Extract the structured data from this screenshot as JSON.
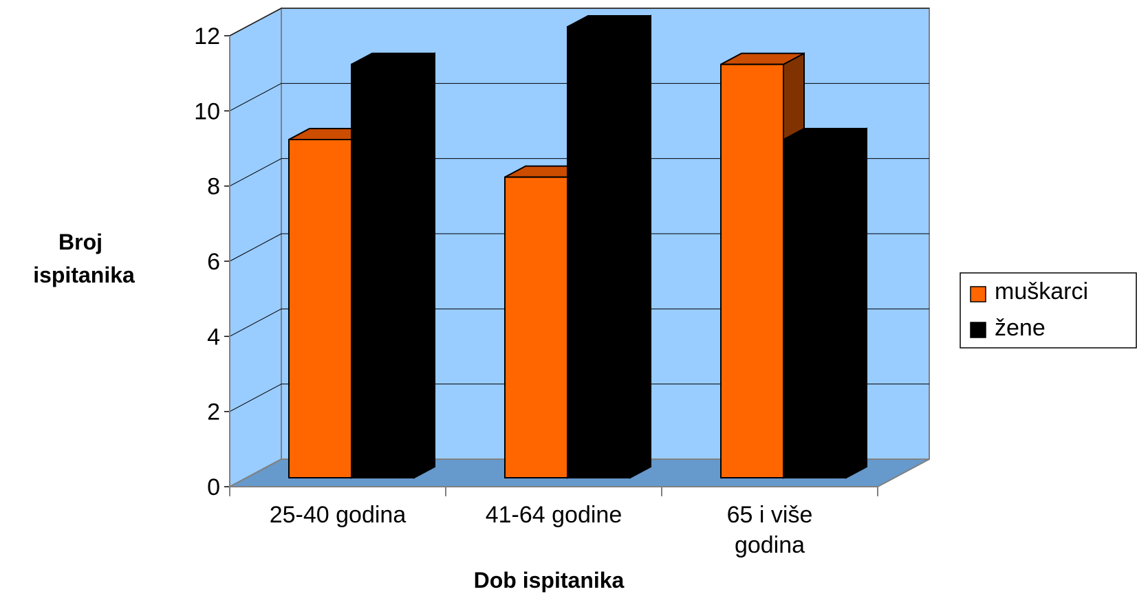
{
  "chart_data": {
    "type": "bar",
    "title": "",
    "categories": [
      "25-40 godina",
      "41-64 godine",
      "65 i više godina"
    ],
    "category_label_lines": [
      [
        "25-40 godina"
      ],
      [
        "41-64 godine"
      ],
      [
        "65 i više",
        "godina"
      ]
    ],
    "series": [
      {
        "name": "muškarci",
        "values": [
          9,
          8,
          11
        ],
        "color": "#FF6600",
        "top_color": "#CC4C00",
        "side_color": "#803300"
      },
      {
        "name": "žene",
        "values": [
          11,
          12,
          9
        ],
        "color": "#000000",
        "top_color": "#000000",
        "side_color": "#000000"
      }
    ],
    "xlabel": "Dob ispitanika",
    "ylabel_lines": [
      "Broj",
      "ispitanika"
    ],
    "ylim": [
      0,
      12
    ],
    "yticks": [
      "0",
      "2",
      "4",
      "6",
      "8",
      "10",
      "12"
    ],
    "grid": true,
    "legend_position": "right",
    "style": "3d-column",
    "wall_color": "#99CCFF",
    "floor_color": "#6699CC"
  }
}
